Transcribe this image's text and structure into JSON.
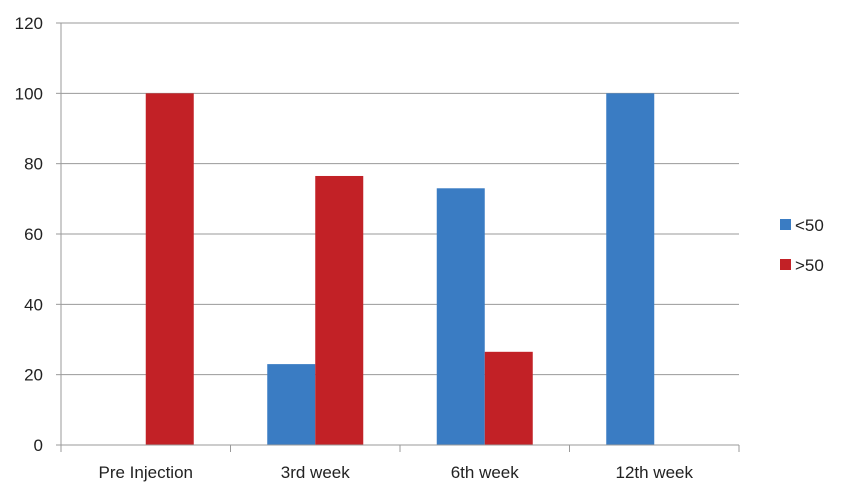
{
  "chart_data": {
    "type": "bar",
    "title": "",
    "xlabel": "",
    "ylabel": "",
    "categories": [
      "Pre Injection",
      "3rd week",
      "6th week",
      "12th week"
    ],
    "series": [
      {
        "name": "<50",
        "values": [
          0,
          23,
          73,
          100
        ],
        "color": "#3a7cc3"
      },
      {
        "name": ">50",
        "values": [
          100,
          76.5,
          26.5,
          0
        ],
        "color": "#c22126"
      }
    ],
    "ylim": [
      0,
      120
    ],
    "yticks": [
      0,
      20,
      40,
      60,
      80,
      100,
      120
    ],
    "grid": true,
    "legend_position": "right"
  }
}
